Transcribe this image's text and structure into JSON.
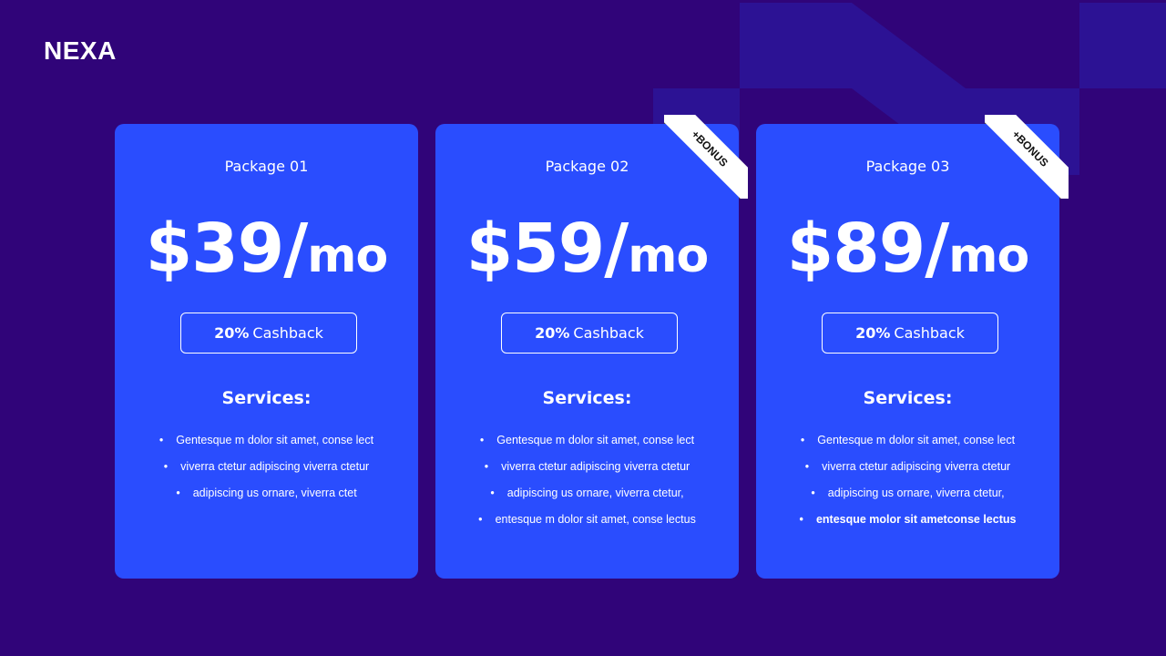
{
  "brand": "NEXA",
  "colors": {
    "background": "#300479",
    "card": "#2a4dfe",
    "shape": "#2c1294"
  },
  "cards": [
    {
      "title": "Package 01",
      "price": "$39/",
      "unit": "mo",
      "cashback_pct": "20%",
      "cashback_label": "Cashback",
      "services_title": "Services:",
      "services": [
        "Gentesque m dolor sit amet, conse lect",
        "viverra ctetur adipiscing viverra ctetur",
        "adipiscing us ornare, viverra ctet"
      ],
      "ribbon": ""
    },
    {
      "title": "Package 02",
      "price": "$59/",
      "unit": "mo",
      "cashback_pct": "20%",
      "cashback_label": "Cashback",
      "services_title": "Services:",
      "services": [
        "Gentesque m dolor sit amet, conse lect",
        "viverra ctetur adipiscing viverra ctetur",
        "adipiscing us ornare, viverra ctetur,",
        "entesque m dolor sit amet, conse lectus"
      ],
      "ribbon": "+BONUS"
    },
    {
      "title": "Package 03",
      "price": "$89/",
      "unit": "mo",
      "cashback_pct": "20%",
      "cashback_label": "Cashback",
      "services_title": "Services:",
      "services": [
        "Gentesque m dolor sit amet, conse lect",
        "viverra ctetur adipiscing viverra ctetur",
        "adipiscing us ornare, viverra ctetur,",
        "entesque molor sit ametconse lectus"
      ],
      "ribbon": "+BONUS"
    }
  ]
}
